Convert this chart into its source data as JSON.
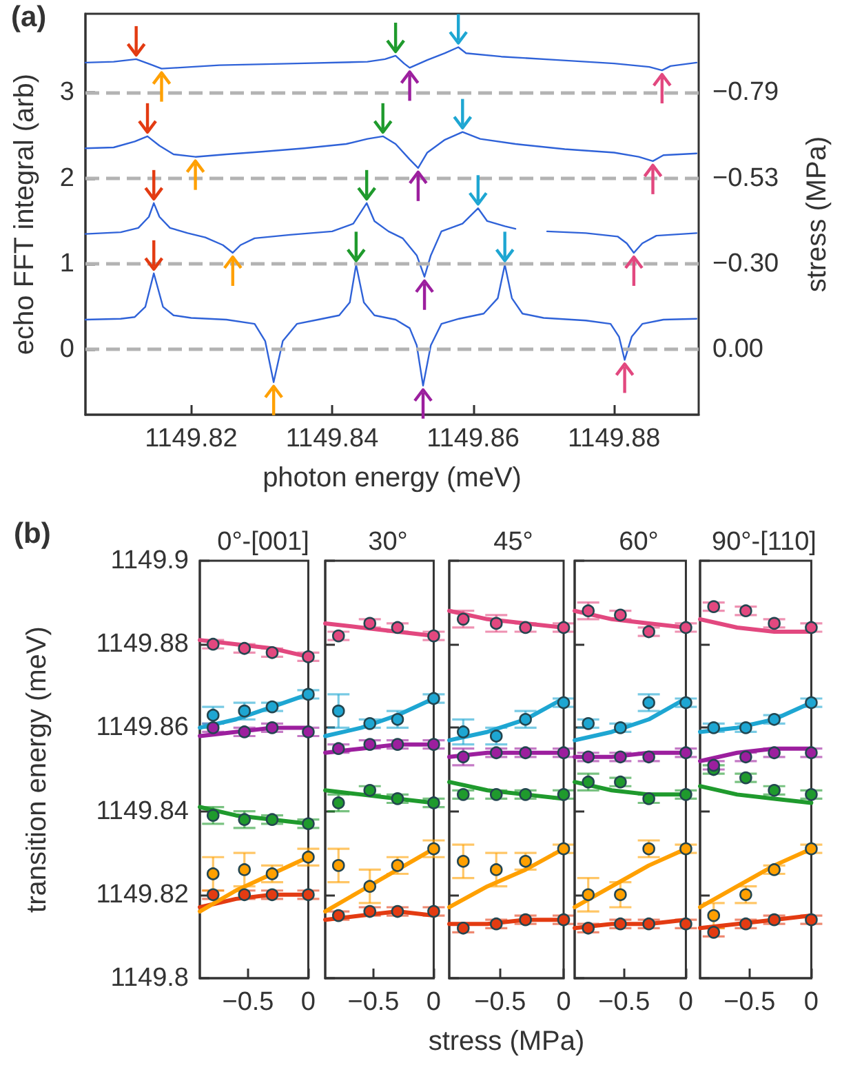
{
  "chart_data": [
    {
      "type": "line",
      "annotations": [
        "(a)"
      ],
      "xlabel": "photon energy (meV)",
      "ylabel": "echo FFT integral (arb)",
      "y2label": "stress (MPa)",
      "xlim": [
        1149.805,
        1149.892
      ],
      "xticks": [
        1149.82,
        1149.84,
        1149.86,
        1149.88
      ],
      "ylim": [
        -0.76,
        3.92
      ],
      "yticks": [
        0,
        1,
        2,
        3
      ],
      "marker": "none",
      "ref_lines": [
        {
          "axis": "y",
          "value": 0,
          "label": "0.00",
          "color": "#b3b3b3",
          "line_style": "dashed"
        },
        {
          "axis": "y",
          "value": 1,
          "label": "−0.30",
          "color": "#b3b3b3",
          "line_style": "dashed"
        },
        {
          "axis": "y",
          "value": 2,
          "label": "−0.53",
          "color": "#b3b3b3",
          "line_style": "dashed"
        },
        {
          "axis": "y",
          "value": 3,
          "label": "−0.79",
          "color": "#b3b3b3",
          "line_style": "dashed"
        }
      ],
      "series": [
        {
          "color": "#2f62d8",
          "x": [
            1149.805,
            1149.81,
            1149.812,
            1149.8135,
            1149.8147,
            1149.816,
            1149.8175,
            1149.82,
            1149.825,
            1149.829,
            1149.8305,
            1149.8317,
            1149.833,
            1149.835,
            1149.838,
            1149.841,
            1149.8425,
            1149.8434,
            1149.8445,
            1149.846,
            1149.849,
            1149.851,
            1149.852,
            1149.8529,
            1149.854,
            1149.8555,
            1149.858,
            1149.8615,
            1149.8635,
            1149.8645,
            1149.8655,
            1149.867,
            1149.87,
            1149.876,
            1149.8795,
            1149.8807,
            1149.8815,
            1149.8825,
            1149.884,
            1149.887,
            1149.8917
          ],
          "values": [
            0.35,
            0.36,
            0.38,
            0.5,
            0.89,
            0.5,
            0.4,
            0.37,
            0.35,
            0.3,
            0.1,
            -0.38,
            0.1,
            0.3,
            0.35,
            0.4,
            0.55,
            0.99,
            0.55,
            0.4,
            0.35,
            0.25,
            0.05,
            -0.42,
            0.05,
            0.3,
            0.36,
            0.42,
            0.6,
            0.99,
            0.6,
            0.42,
            0.37,
            0.34,
            0.3,
            0.15,
            -0.12,
            0.15,
            0.3,
            0.35,
            0.36
          ]
        },
        {
          "color": "#2f62d8",
          "x": [
            1149.805,
            1149.81,
            1149.8125,
            1149.814,
            1149.8147,
            1149.8155,
            1149.817,
            1149.8195,
            1149.822,
            1149.8245,
            1149.8259,
            1149.827,
            1149.829,
            1149.834,
            1149.84,
            1149.843,
            1149.8449,
            1149.846,
            1149.848,
            1149.85,
            1149.852,
            1149.8531,
            1149.854,
            1149.8555,
            1149.8585,
            1149.8607,
            1149.862,
            1149.8645,
            1149.866,
            1149.867,
            1149.8705,
            1149.876,
            1149.8805,
            1149.8818,
            1149.8828,
            1149.884,
            1149.886,
            1149.8917
          ],
          "values": [
            1.35,
            1.37,
            1.42,
            1.55,
            1.71,
            1.55,
            1.42,
            1.36,
            1.31,
            1.22,
            1.13,
            1.22,
            1.3,
            1.34,
            1.38,
            1.47,
            1.71,
            1.5,
            1.38,
            1.3,
            1.1,
            0.85,
            1.1,
            1.38,
            1.47,
            1.65,
            1.5,
            1.44,
            1.41,
            null,
            1.38,
            1.36,
            1.32,
            1.24,
            1.13,
            1.24,
            1.33,
            1.36
          ]
        },
        {
          "color": "#2f62d8",
          "x": [
            1149.805,
            1149.809,
            1149.812,
            1149.8138,
            1149.8155,
            1149.8175,
            1149.8206,
            1149.825,
            1149.83,
            1149.836,
            1149.842,
            1149.845,
            1149.8472,
            1149.849,
            1149.851,
            1149.8522,
            1149.8535,
            1149.856,
            1149.8585,
            1149.861,
            1149.866,
            1149.873,
            1149.88,
            1149.8835,
            1149.8855,
            1149.887,
            1149.8917
          ],
          "values": [
            2.35,
            2.36,
            2.43,
            2.49,
            2.38,
            2.28,
            2.25,
            2.28,
            2.31,
            2.35,
            2.4,
            2.46,
            2.49,
            2.4,
            2.22,
            2.12,
            2.3,
            2.45,
            2.54,
            2.46,
            2.4,
            2.34,
            2.3,
            2.25,
            2.2,
            2.27,
            2.29
          ]
        },
        {
          "color": "#2f62d8",
          "x": [
            1149.805,
            1149.809,
            1149.8122,
            1149.8142,
            1149.8158,
            1149.818,
            1149.824,
            1149.835,
            1149.845,
            1149.8475,
            1149.849,
            1149.8502,
            1149.851,
            1149.8535,
            1149.856,
            1149.8579,
            1149.859,
            1149.864,
            1149.872,
            1149.88,
            1149.885,
            1149.8868,
            1149.888,
            1149.8917
          ],
          "values": [
            3.35,
            3.36,
            3.39,
            3.33,
            3.28,
            3.29,
            3.32,
            3.34,
            3.36,
            3.39,
            3.43,
            3.34,
            3.29,
            3.38,
            3.46,
            3.53,
            3.46,
            3.42,
            3.38,
            3.34,
            3.3,
            3.26,
            3.31,
            3.35
          ]
        }
      ]
    },
    {
      "type": "scatter",
      "title": "0°-[001]",
      "annotations": [
        "(b)"
      ],
      "ylabel": "transition energy (meV)",
      "xlim": [
        -0.9,
        0
      ],
      "xticks": [
        -0.5,
        0
      ],
      "ylim": [
        1149.8,
        1149.9
      ],
      "yticks": [
        1149.8,
        1149.82,
        1149.84,
        1149.86,
        1149.88,
        1149.9
      ],
      "series": [
        {
          "marker": "circle",
          "color": "#e33b12",
          "x": [
            -0.79,
            -0.53,
            -0.3,
            0
          ],
          "values": [
            1149.82,
            1149.82,
            1149.82,
            1149.82
          ],
          "errors": [
            0.001,
            0.001,
            0.001,
            0.001
          ]
        },
        {
          "marker": "circle",
          "color": "#ffa000",
          "x": [
            -0.79,
            -0.53,
            -0.3,
            0
          ],
          "values": [
            1149.825,
            1149.826,
            1149.825,
            1149.829
          ],
          "errors": [
            0.004,
            0.004,
            0.002,
            0.002
          ]
        },
        {
          "marker": "circle",
          "color": "#1f9a2d",
          "x": [
            -0.79,
            -0.53,
            -0.3,
            0
          ],
          "values": [
            1149.839,
            1149.838,
            1149.838,
            1149.837
          ],
          "errors": [
            0.002,
            0.002,
            0.001,
            0.001
          ]
        },
        {
          "marker": "circle",
          "color": "#9c1f9e",
          "x": [
            -0.79,
            -0.53,
            -0.3,
            0
          ],
          "values": [
            1149.86,
            1149.859,
            1149.86,
            1149.859
          ],
          "errors": [
            0.001,
            0.001,
            0.001,
            0.001
          ]
        },
        {
          "marker": "circle",
          "color": "#1ea6d2",
          "x": [
            -0.79,
            -0.53,
            -0.3,
            0
          ],
          "values": [
            1149.863,
            1149.864,
            1149.865,
            1149.868
          ],
          "errors": [
            0.002,
            0.002,
            0.001,
            0.001
          ]
        },
        {
          "marker": "circle",
          "color": "#e2487f",
          "x": [
            -0.79,
            -0.53,
            -0.3,
            0
          ],
          "values": [
            1149.88,
            1149.879,
            1149.878,
            1149.877
          ],
          "errors": [
            0.001,
            0.001,
            0.001,
            0.001
          ]
        },
        {
          "type": "line",
          "marker": "none",
          "color": "#e33b12",
          "x": [
            -0.9,
            -0.6,
            -0.3,
            0
          ],
          "values": [
            1149.817,
            1149.819,
            1149.82,
            1149.82
          ]
        },
        {
          "type": "line",
          "marker": "none",
          "color": "#ffa000",
          "x": [
            -0.9,
            -0.6,
            -0.3,
            0
          ],
          "values": [
            1149.816,
            1149.821,
            1149.825,
            1149.829
          ]
        },
        {
          "type": "line",
          "marker": "none",
          "color": "#1f9a2d",
          "x": [
            -0.9,
            -0.6,
            -0.3,
            0
          ],
          "values": [
            1149.841,
            1149.839,
            1149.838,
            1149.837
          ]
        },
        {
          "type": "line",
          "marker": "none",
          "color": "#9c1f9e",
          "x": [
            -0.9,
            -0.6,
            -0.3,
            0
          ],
          "values": [
            1149.858,
            1149.859,
            1149.86,
            1149.86
          ]
        },
        {
          "type": "line",
          "marker": "none",
          "color": "#1ea6d2",
          "x": [
            -0.9,
            -0.6,
            -0.3,
            0
          ],
          "values": [
            1149.86,
            1149.862,
            1149.865,
            1149.868
          ]
        },
        {
          "type": "line",
          "marker": "none",
          "color": "#e2487f",
          "x": [
            -0.9,
            -0.6,
            -0.3,
            0
          ],
          "values": [
            1149.881,
            1149.88,
            1149.879,
            1149.877
          ]
        }
      ]
    },
    {
      "type": "scatter",
      "title": "30°",
      "tick_labels": "x",
      "xlim": [
        -0.9,
        0
      ],
      "xticks": [
        -0.5,
        0
      ],
      "ylim": [
        1149.8,
        1149.9
      ],
      "yticks": [
        1149.8,
        1149.82,
        1149.84,
        1149.86,
        1149.88,
        1149.9
      ],
      "series": [
        {
          "marker": "circle",
          "color": "#e33b12",
          "x": [
            -0.79,
            -0.53,
            -0.3,
            0
          ],
          "values": [
            1149.815,
            1149.816,
            1149.816,
            1149.816
          ],
          "errors": [
            0.001,
            0.001,
            0.001,
            0.001
          ]
        },
        {
          "marker": "circle",
          "color": "#ffa000",
          "x": [
            -0.79,
            -0.53,
            -0.3,
            0
          ],
          "values": [
            1149.827,
            1149.822,
            1149.827,
            1149.831
          ],
          "errors": [
            0.004,
            0.004,
            0.002,
            0.002
          ]
        },
        {
          "marker": "circle",
          "color": "#1f9a2d",
          "x": [
            -0.79,
            -0.53,
            -0.3,
            0
          ],
          "values": [
            1149.842,
            1149.845,
            1149.843,
            1149.842
          ],
          "errors": [
            0.002,
            0.001,
            0.001,
            0.001
          ]
        },
        {
          "marker": "circle",
          "color": "#9c1f9e",
          "x": [
            -0.79,
            -0.53,
            -0.3,
            0
          ],
          "values": [
            1149.855,
            1149.856,
            1149.856,
            1149.856
          ],
          "errors": [
            0.001,
            0.001,
            0.001,
            0.001
          ]
        },
        {
          "marker": "circle",
          "color": "#1ea6d2",
          "x": [
            -0.79,
            -0.53,
            -0.3,
            0
          ],
          "values": [
            1149.864,
            1149.861,
            1149.862,
            1149.867
          ],
          "errors": [
            0.004,
            0.001,
            0.002,
            0.001
          ]
        },
        {
          "marker": "circle",
          "color": "#e2487f",
          "x": [
            -0.79,
            -0.53,
            -0.3,
            0
          ],
          "values": [
            1149.882,
            1149.885,
            1149.884,
            1149.882
          ],
          "errors": [
            0.001,
            0.001,
            0.001,
            0.001
          ]
        },
        {
          "type": "line",
          "marker": "none",
          "color": "#e33b12",
          "x": [
            -0.9,
            -0.6,
            -0.3,
            0
          ],
          "values": [
            1149.814,
            1149.815,
            1149.816,
            1149.815
          ]
        },
        {
          "type": "line",
          "marker": "none",
          "color": "#ffa000",
          "x": [
            -0.9,
            -0.6,
            -0.3,
            0
          ],
          "values": [
            1149.816,
            1149.821,
            1149.826,
            1149.831
          ]
        },
        {
          "type": "line",
          "marker": "none",
          "color": "#1f9a2d",
          "x": [
            -0.9,
            -0.6,
            -0.3,
            0
          ],
          "values": [
            1149.845,
            1149.844,
            1149.843,
            1149.842
          ]
        },
        {
          "type": "line",
          "marker": "none",
          "color": "#9c1f9e",
          "x": [
            -0.9,
            -0.6,
            -0.3,
            0
          ],
          "values": [
            1149.854,
            1149.855,
            1149.856,
            1149.856
          ]
        },
        {
          "type": "line",
          "marker": "none",
          "color": "#1ea6d2",
          "x": [
            -0.9,
            -0.6,
            -0.3,
            0
          ],
          "values": [
            1149.858,
            1149.86,
            1149.863,
            1149.867
          ]
        },
        {
          "type": "line",
          "marker": "none",
          "color": "#e2487f",
          "x": [
            -0.9,
            -0.6,
            -0.3,
            0
          ],
          "values": [
            1149.885,
            1149.884,
            1149.883,
            1149.882
          ]
        }
      ]
    },
    {
      "type": "scatter",
      "title": "45°",
      "tick_labels": "x",
      "xlabel": "stress (MPa)",
      "xlim": [
        -0.9,
        0
      ],
      "xticks": [
        -0.5,
        0
      ],
      "ylim": [
        1149.8,
        1149.9
      ],
      "yticks": [
        1149.8,
        1149.82,
        1149.84,
        1149.86,
        1149.88,
        1149.9
      ],
      "series": [
        {
          "marker": "circle",
          "color": "#e33b12",
          "x": [
            -0.79,
            -0.53,
            -0.3,
            0
          ],
          "values": [
            1149.812,
            1149.813,
            1149.814,
            1149.814
          ],
          "errors": [
            0.001,
            0.001,
            0.001,
            0.001
          ]
        },
        {
          "marker": "circle",
          "color": "#ffa000",
          "x": [
            -0.79,
            -0.53,
            -0.3,
            0
          ],
          "values": [
            1149.828,
            1149.826,
            1149.828,
            1149.831
          ],
          "errors": [
            0.004,
            0.004,
            0.002,
            0.001
          ]
        },
        {
          "marker": "circle",
          "color": "#1f9a2d",
          "x": [
            -0.79,
            -0.53,
            -0.3,
            0
          ],
          "values": [
            1149.844,
            1149.844,
            1149.844,
            1149.844
          ],
          "errors": [
            0.001,
            0.001,
            0.001,
            0.001
          ]
        },
        {
          "marker": "circle",
          "color": "#9c1f9e",
          "x": [
            -0.79,
            -0.53,
            -0.3,
            0
          ],
          "values": [
            1149.853,
            1149.854,
            1149.854,
            1149.854
          ],
          "errors": [
            0.002,
            0.001,
            0.001,
            0.001
          ]
        },
        {
          "marker": "circle",
          "color": "#1ea6d2",
          "x": [
            -0.79,
            -0.53,
            -0.3,
            0
          ],
          "values": [
            1149.859,
            1149.858,
            1149.862,
            1149.866
          ],
          "errors": [
            0.003,
            0.002,
            0.002,
            0.001
          ]
        },
        {
          "marker": "circle",
          "color": "#e2487f",
          "x": [
            -0.79,
            -0.53,
            -0.3,
            0
          ],
          "values": [
            1149.886,
            1149.885,
            1149.884,
            1149.884
          ],
          "errors": [
            0.002,
            0.002,
            0.001,
            0.001
          ]
        },
        {
          "type": "line",
          "marker": "none",
          "color": "#e33b12",
          "x": [
            -0.9,
            -0.6,
            -0.3,
            0
          ],
          "values": [
            1149.813,
            1149.813,
            1149.814,
            1149.814
          ]
        },
        {
          "type": "line",
          "marker": "none",
          "color": "#ffa000",
          "x": [
            -0.9,
            -0.6,
            -0.3,
            0
          ],
          "values": [
            1149.817,
            1149.822,
            1149.826,
            1149.831
          ]
        },
        {
          "type": "line",
          "marker": "none",
          "color": "#1f9a2d",
          "x": [
            -0.9,
            -0.6,
            -0.3,
            0
          ],
          "values": [
            1149.847,
            1149.845,
            1149.844,
            1149.843
          ]
        },
        {
          "type": "line",
          "marker": "none",
          "color": "#9c1f9e",
          "x": [
            -0.9,
            -0.6,
            -0.3,
            0
          ],
          "values": [
            1149.853,
            1149.854,
            1149.854,
            1149.854
          ]
        },
        {
          "type": "line",
          "marker": "none",
          "color": "#1ea6d2",
          "x": [
            -0.9,
            -0.6,
            -0.3,
            0
          ],
          "values": [
            1149.857,
            1149.859,
            1149.862,
            1149.867
          ]
        },
        {
          "type": "line",
          "marker": "none",
          "color": "#e2487f",
          "x": [
            -0.9,
            -0.6,
            -0.3,
            0
          ],
          "values": [
            1149.888,
            1149.886,
            1149.885,
            1149.884
          ]
        }
      ]
    },
    {
      "type": "scatter",
      "title": "60°",
      "tick_labels": "x",
      "xlim": [
        -0.9,
        0
      ],
      "xticks": [
        -0.5,
        0
      ],
      "ylim": [
        1149.8,
        1149.9
      ],
      "yticks": [
        1149.8,
        1149.82,
        1149.84,
        1149.86,
        1149.88,
        1149.9
      ],
      "series": [
        {
          "marker": "circle",
          "color": "#e33b12",
          "x": [
            -0.79,
            -0.53,
            -0.3,
            0
          ],
          "values": [
            1149.812,
            1149.813,
            1149.813,
            1149.813
          ],
          "errors": [
            0.001,
            0.001,
            0.001,
            0.001
          ]
        },
        {
          "marker": "circle",
          "color": "#ffa000",
          "x": [
            -0.79,
            -0.53,
            -0.3,
            0
          ],
          "values": [
            1149.82,
            1149.82,
            1149.831,
            1149.831
          ],
          "errors": [
            0.004,
            0.003,
            0.002,
            0.001
          ]
        },
        {
          "marker": "circle",
          "color": "#1f9a2d",
          "x": [
            -0.79,
            -0.53,
            -0.3,
            0
          ],
          "values": [
            1149.847,
            1149.847,
            1149.843,
            1149.844
          ],
          "errors": [
            0.002,
            0.001,
            0.001,
            0.001
          ]
        },
        {
          "marker": "circle",
          "color": "#9c1f9e",
          "x": [
            -0.79,
            -0.53,
            -0.3,
            0
          ],
          "values": [
            1149.853,
            1149.853,
            1149.853,
            1149.854
          ],
          "errors": [
            0.001,
            0.001,
            0.001,
            0.001
          ]
        },
        {
          "marker": "circle",
          "color": "#1ea6d2",
          "x": [
            -0.79,
            -0.53,
            -0.3,
            0
          ],
          "values": [
            1149.861,
            1149.86,
            1149.866,
            1149.866
          ],
          "errors": [
            0.001,
            0.001,
            0.002,
            0.001
          ]
        },
        {
          "marker": "circle",
          "color": "#e2487f",
          "x": [
            -0.79,
            -0.53,
            -0.3,
            0
          ],
          "values": [
            1149.888,
            1149.887,
            1149.883,
            1149.884
          ],
          "errors": [
            0.002,
            0.001,
            0.001,
            0.001
          ]
        },
        {
          "type": "line",
          "marker": "none",
          "color": "#e33b12",
          "x": [
            -0.9,
            -0.6,
            -0.3,
            0
          ],
          "values": [
            1149.812,
            1149.813,
            1149.813,
            1149.814
          ]
        },
        {
          "type": "line",
          "marker": "none",
          "color": "#ffa000",
          "x": [
            -0.9,
            -0.6,
            -0.3,
            0
          ],
          "values": [
            1149.817,
            1149.822,
            1149.827,
            1149.831
          ]
        },
        {
          "type": "line",
          "marker": "none",
          "color": "#1f9a2d",
          "x": [
            -0.9,
            -0.6,
            -0.3,
            0
          ],
          "values": [
            1149.847,
            1149.845,
            1149.844,
            1149.844
          ]
        },
        {
          "type": "line",
          "marker": "none",
          "color": "#9c1f9e",
          "x": [
            -0.9,
            -0.6,
            -0.3,
            0
          ],
          "values": [
            1149.853,
            1149.853,
            1149.854,
            1149.854
          ]
        },
        {
          "type": "line",
          "marker": "none",
          "color": "#1ea6d2",
          "x": [
            -0.9,
            -0.6,
            -0.3,
            0
          ],
          "values": [
            1149.857,
            1149.859,
            1149.862,
            1149.867
          ]
        },
        {
          "type": "line",
          "marker": "none",
          "color": "#e2487f",
          "x": [
            -0.9,
            -0.6,
            -0.3,
            0
          ],
          "values": [
            1149.888,
            1149.886,
            1149.885,
            1149.884
          ]
        }
      ]
    },
    {
      "type": "scatter",
      "title": "90°-[110]",
      "tick_labels": "x",
      "xlim": [
        -0.9,
        0
      ],
      "xticks": [
        -0.5,
        0
      ],
      "ylim": [
        1149.8,
        1149.9
      ],
      "yticks": [
        1149.8,
        1149.82,
        1149.84,
        1149.86,
        1149.88,
        1149.9
      ],
      "series": [
        {
          "marker": "circle",
          "color": "#e33b12",
          "x": [
            -0.79,
            -0.53,
            -0.3,
            0
          ],
          "values": [
            1149.811,
            1149.813,
            1149.814,
            1149.814
          ],
          "errors": [
            0.001,
            0.001,
            0.001,
            0.001
          ]
        },
        {
          "marker": "circle",
          "color": "#ffa000",
          "x": [
            -0.79,
            -0.53,
            -0.3,
            0
          ],
          "values": [
            1149.815,
            1149.82,
            1149.826,
            1149.831
          ],
          "errors": [
            0.003,
            0.002,
            0.001,
            0.001
          ]
        },
        {
          "marker": "circle",
          "color": "#1f9a2d",
          "x": [
            -0.79,
            -0.53,
            -0.3,
            0
          ],
          "values": [
            1149.85,
            1149.848,
            1149.845,
            1149.844
          ],
          "errors": [
            0.001,
            0.001,
            0.001,
            0.001
          ]
        },
        {
          "marker": "circle",
          "color": "#9c1f9e",
          "x": [
            -0.79,
            -0.53,
            -0.3,
            0
          ],
          "values": [
            1149.851,
            1149.853,
            1149.854,
            1149.854
          ],
          "errors": [
            0.001,
            0.001,
            0.001,
            0.001
          ]
        },
        {
          "marker": "circle",
          "color": "#1ea6d2",
          "x": [
            -0.79,
            -0.53,
            -0.3,
            0
          ],
          "values": [
            1149.86,
            1149.86,
            1149.862,
            1149.866
          ],
          "errors": [
            0.001,
            0.001,
            0.001,
            0.001
          ]
        },
        {
          "marker": "circle",
          "color": "#e2487f",
          "x": [
            -0.79,
            -0.53,
            -0.3,
            0
          ],
          "values": [
            1149.889,
            1149.888,
            1149.885,
            1149.884
          ],
          "errors": [
            0.001,
            0.001,
            0.001,
            0.001
          ]
        },
        {
          "type": "line",
          "marker": "none",
          "color": "#e33b12",
          "x": [
            -0.9,
            -0.6,
            -0.3,
            0
          ],
          "values": [
            1149.812,
            1149.813,
            1149.814,
            1149.815
          ]
        },
        {
          "type": "line",
          "marker": "none",
          "color": "#ffa000",
          "x": [
            -0.9,
            -0.6,
            -0.3,
            0
          ],
          "values": [
            1149.817,
            1149.822,
            1149.827,
            1149.831
          ]
        },
        {
          "type": "line",
          "marker": "none",
          "color": "#1f9a2d",
          "x": [
            -0.9,
            -0.6,
            -0.3,
            0
          ],
          "values": [
            1149.846,
            1149.844,
            1149.843,
            1149.842
          ]
        },
        {
          "type": "line",
          "marker": "none",
          "color": "#9c1f9e",
          "x": [
            -0.9,
            -0.6,
            -0.3,
            0
          ],
          "values": [
            1149.852,
            1149.854,
            1149.855,
            1149.855
          ]
        },
        {
          "type": "line",
          "marker": "none",
          "color": "#1ea6d2",
          "x": [
            -0.9,
            -0.6,
            -0.3,
            0
          ],
          "values": [
            1149.859,
            1149.86,
            1149.862,
            1149.866
          ]
        },
        {
          "type": "line",
          "marker": "none",
          "color": "#e2487f",
          "x": [
            -0.9,
            -0.6,
            -0.3,
            0
          ],
          "values": [
            1149.886,
            1149.884,
            1149.883,
            1149.883
          ]
        }
      ]
    }
  ]
}
